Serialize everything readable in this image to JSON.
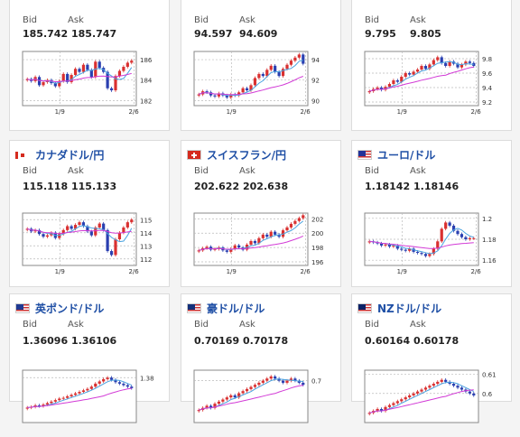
{
  "labels": {
    "bid": "Bid",
    "ask": "Ask"
  },
  "colors": {
    "up": "#d93030",
    "down": "#2a3fb0",
    "ma_short": "#4aa3e0",
    "ma_long": "#d23ad6"
  },
  "cards": [
    {
      "pair": "",
      "flag": "",
      "bid": "185.742",
      "ask": "185.747",
      "chart_data": {
        "type": "candlestick",
        "x_ticks": [
          "1/9",
          "2/6"
        ],
        "y_ticks": [
          "186",
          "184",
          "182"
        ],
        "ylim": [
          181.5,
          186.8
        ],
        "closes": [
          184.1,
          183.9,
          184.3,
          183.5,
          183.8,
          184.0,
          183.7,
          183.4,
          183.9,
          184.6,
          183.8,
          184.5,
          185.1,
          184.8,
          185.5,
          185.0,
          184.3,
          185.8,
          185.2,
          184.8,
          183.2,
          183.0,
          184.4,
          184.9,
          185.3,
          185.7,
          185.9
        ]
      }
    },
    {
      "pair": "",
      "flag": "",
      "bid": "94.597",
      "ask": "94.609",
      "chart_data": {
        "type": "candlestick",
        "x_ticks": [
          "1/9",
          "2/6"
        ],
        "y_ticks": [
          "94",
          "92",
          "90"
        ],
        "ylim": [
          89.5,
          94.8
        ],
        "closes": [
          90.6,
          90.9,
          90.8,
          90.5,
          90.4,
          90.7,
          90.5,
          90.3,
          90.6,
          90.5,
          90.8,
          91.2,
          91.0,
          91.5,
          92.2,
          92.6,
          92.4,
          93.0,
          93.4,
          92.8,
          92.4,
          93.1,
          93.5,
          93.9,
          94.2,
          94.5,
          93.6
        ]
      }
    },
    {
      "pair": "",
      "flag": "",
      "bid": "9.795",
      "ask": "9.805",
      "chart_data": {
        "type": "candlestick",
        "x_ticks": [
          "1/9",
          "2/6"
        ],
        "y_ticks": [
          "9.8",
          "9.6",
          "9.4",
          "9.2"
        ],
        "ylim": [
          9.15,
          9.9
        ],
        "closes": [
          9.35,
          9.38,
          9.4,
          9.37,
          9.41,
          9.45,
          9.5,
          9.48,
          9.55,
          9.6,
          9.58,
          9.62,
          9.65,
          9.7,
          9.66,
          9.72,
          9.78,
          9.82,
          9.74,
          9.7,
          9.76,
          9.73,
          9.68,
          9.72,
          9.76,
          9.74,
          9.7
        ]
      }
    },
    {
      "pair": "カナダドル/円",
      "flag": "ca",
      "bid": "115.118",
      "ask": "115.133",
      "chart_data": {
        "type": "candlestick",
        "x_ticks": [
          "1/9",
          "2/6"
        ],
        "y_ticks": [
          "115",
          "114",
          "113",
          "112"
        ],
        "ylim": [
          111.5,
          115.5
        ],
        "closes": [
          114.3,
          114.1,
          114.2,
          113.9,
          113.7,
          113.8,
          114.0,
          113.6,
          113.9,
          114.2,
          114.5,
          114.3,
          114.6,
          114.8,
          114.5,
          114.1,
          113.8,
          114.4,
          114.7,
          114.2,
          112.6,
          112.3,
          113.5,
          114.0,
          114.4,
          114.8,
          115.0
        ]
      }
    },
    {
      "pair": "スイスフラン/円",
      "flag": "ch",
      "bid": "202.622",
      "ask": "202.638",
      "chart_data": {
        "type": "candlestick",
        "x_ticks": [
          "1/9",
          "2/6"
        ],
        "y_ticks": [
          "202",
          "200",
          "198",
          "196"
        ],
        "ylim": [
          195.5,
          202.8
        ],
        "closes": [
          197.6,
          197.9,
          198.1,
          197.7,
          197.8,
          198.0,
          197.6,
          197.4,
          197.8,
          198.3,
          198.0,
          197.7,
          198.4,
          198.9,
          198.6,
          199.3,
          199.8,
          199.5,
          200.2,
          199.8,
          199.5,
          200.4,
          200.8,
          201.3,
          201.7,
          202.1,
          202.5
        ]
      }
    },
    {
      "pair": "ユーロ/ドル",
      "flag": "eu_us",
      "bid": "1.18142",
      "ask": "1.18146",
      "chart_data": {
        "type": "candlestick",
        "x_ticks": [
          "1/9",
          "2/6"
        ],
        "y_ticks": [
          "1.2",
          "1.18",
          "1.16"
        ],
        "ylim": [
          1.155,
          1.205
        ],
        "closes": [
          1.178,
          1.177,
          1.176,
          1.174,
          1.175,
          1.173,
          1.174,
          1.171,
          1.17,
          1.169,
          1.171,
          1.168,
          1.167,
          1.166,
          1.164,
          1.166,
          1.171,
          1.178,
          1.19,
          1.196,
          1.193,
          1.188,
          1.185,
          1.182,
          1.18,
          1.181,
          1.181
        ]
      }
    },
    {
      "pair": "英ポンド/ドル",
      "flag": "uk_us",
      "bid": "1.36096",
      "ask": "1.36106",
      "chart_data": {
        "type": "candlestick",
        "x_ticks": [],
        "y_ticks": [
          "1.38"
        ],
        "ylim": [
          1.32,
          1.39
        ],
        "closes": [
          1.34,
          1.341,
          1.343,
          1.342,
          1.344,
          1.346,
          1.348,
          1.35,
          1.352,
          1.353,
          1.355,
          1.357,
          1.359,
          1.361,
          1.363,
          1.365,
          1.368,
          1.372,
          1.375,
          1.378,
          1.38,
          1.377,
          1.374,
          1.372,
          1.37,
          1.368,
          1.366
        ]
      }
    },
    {
      "pair": "豪ドル/ドル",
      "flag": "au_us",
      "bid": "0.70169",
      "ask": "0.70178",
      "chart_data": {
        "type": "candlestick",
        "x_ticks": [],
        "y_ticks": [
          "0.7"
        ],
        "ylim": [
          0.68,
          0.705
        ],
        "closes": [
          0.686,
          0.687,
          0.688,
          0.687,
          0.689,
          0.69,
          0.691,
          0.692,
          0.693,
          0.692,
          0.694,
          0.695,
          0.696,
          0.697,
          0.698,
          0.699,
          0.7,
          0.701,
          0.702,
          0.701,
          0.7,
          0.699,
          0.7,
          0.701,
          0.7,
          0.699,
          0.698
        ]
      }
    },
    {
      "pair": "NZドル/ドル",
      "flag": "nz_us",
      "bid": "0.60164",
      "ask": "0.60178",
      "chart_data": {
        "type": "candlestick",
        "x_ticks": [],
        "y_ticks": [
          "0.61",
          "0.6"
        ],
        "ylim": [
          0.585,
          0.612
        ],
        "closes": [
          0.59,
          0.591,
          0.592,
          0.591,
          0.593,
          0.594,
          0.595,
          0.596,
          0.597,
          0.598,
          0.599,
          0.6,
          0.601,
          0.602,
          0.603,
          0.604,
          0.605,
          0.606,
          0.607,
          0.606,
          0.605,
          0.604,
          0.603,
          0.602,
          0.601,
          0.6,
          0.599
        ]
      }
    }
  ]
}
